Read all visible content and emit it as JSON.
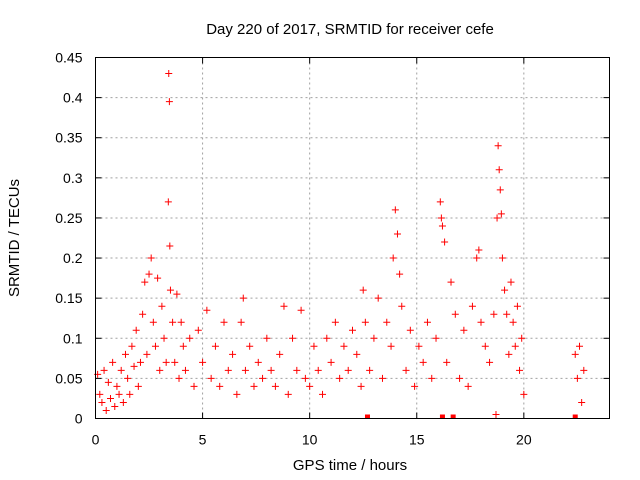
{
  "chart_data": {
    "type": "scatter",
    "title": "Day 220 of 2017, SRMTID for receiver cefe",
    "xlabel": "GPS time / hours",
    "ylabel": "SRMTID / TECUs",
    "xlim": [
      0,
      24
    ],
    "ylim": [
      0,
      0.45
    ],
    "x_ticks": [
      0,
      5,
      10,
      15,
      20
    ],
    "x_tick_labels": [
      "0",
      "5",
      "10",
      "15",
      "20"
    ],
    "y_ticks": [
      0,
      0.05,
      0.1,
      0.15,
      0.2,
      0.25,
      0.3,
      0.35,
      0.4,
      0.45
    ],
    "y_tick_labels": [
      "0",
      "0.05",
      "0.1",
      "0.15",
      "0.2",
      "0.25",
      "0.3",
      "0.35",
      "0.4",
      "0.45"
    ],
    "grid": true,
    "marker": "+",
    "color": "#ff0000",
    "baseline_gaps_x": [
      12.7,
      16.2,
      16.7,
      22.4
    ],
    "series": [
      {
        "name": "SRMTID",
        "points": [
          [
            0.1,
            0.055
          ],
          [
            0.2,
            0.03
          ],
          [
            0.3,
            0.02
          ],
          [
            0.4,
            0.06
          ],
          [
            0.5,
            0.01
          ],
          [
            0.6,
            0.045
          ],
          [
            0.7,
            0.025
          ],
          [
            0.8,
            0.07
          ],
          [
            0.9,
            0.015
          ],
          [
            1.0,
            0.04
          ],
          [
            1.1,
            0.03
          ],
          [
            1.2,
            0.06
          ],
          [
            1.3,
            0.02
          ],
          [
            1.4,
            0.08
          ],
          [
            1.5,
            0.05
          ],
          [
            1.6,
            0.03
          ],
          [
            1.7,
            0.09
          ],
          [
            1.8,
            0.065
          ],
          [
            1.9,
            0.11
          ],
          [
            2.0,
            0.04
          ],
          [
            2.1,
            0.07
          ],
          [
            2.2,
            0.13
          ],
          [
            2.3,
            0.17
          ],
          [
            2.4,
            0.08
          ],
          [
            2.5,
            0.18
          ],
          [
            2.6,
            0.2
          ],
          [
            2.7,
            0.12
          ],
          [
            2.8,
            0.09
          ],
          [
            2.9,
            0.175
          ],
          [
            3.0,
            0.06
          ],
          [
            3.1,
            0.14
          ],
          [
            3.2,
            0.1
          ],
          [
            3.3,
            0.07
          ],
          [
            3.4,
            0.27
          ],
          [
            3.42,
            0.43
          ],
          [
            3.45,
            0.395
          ],
          [
            3.47,
            0.215
          ],
          [
            3.5,
            0.16
          ],
          [
            3.6,
            0.12
          ],
          [
            3.7,
            0.07
          ],
          [
            3.8,
            0.155
          ],
          [
            3.9,
            0.05
          ],
          [
            4.0,
            0.12
          ],
          [
            4.1,
            0.09
          ],
          [
            4.2,
            0.06
          ],
          [
            4.4,
            0.1
          ],
          [
            4.6,
            0.04
          ],
          [
            4.8,
            0.11
          ],
          [
            5.0,
            0.07
          ],
          [
            5.2,
            0.135
          ],
          [
            5.4,
            0.05
          ],
          [
            5.6,
            0.09
          ],
          [
            5.8,
            0.04
          ],
          [
            6.0,
            0.12
          ],
          [
            6.2,
            0.06
          ],
          [
            6.4,
            0.08
          ],
          [
            6.6,
            0.03
          ],
          [
            6.8,
            0.12
          ],
          [
            6.9,
            0.15
          ],
          [
            7.0,
            0.06
          ],
          [
            7.2,
            0.09
          ],
          [
            7.4,
            0.04
          ],
          [
            7.6,
            0.07
          ],
          [
            7.8,
            0.05
          ],
          [
            8.0,
            0.1
          ],
          [
            8.2,
            0.06
          ],
          [
            8.4,
            0.04
          ],
          [
            8.6,
            0.08
          ],
          [
            8.8,
            0.14
          ],
          [
            9.0,
            0.03
          ],
          [
            9.2,
            0.1
          ],
          [
            9.4,
            0.06
          ],
          [
            9.6,
            0.135
          ],
          [
            9.8,
            0.05
          ],
          [
            10.0,
            0.04
          ],
          [
            10.2,
            0.09
          ],
          [
            10.4,
            0.06
          ],
          [
            10.6,
            0.03
          ],
          [
            10.8,
            0.1
          ],
          [
            11.0,
            0.07
          ],
          [
            11.2,
            0.12
          ],
          [
            11.4,
            0.05
          ],
          [
            11.6,
            0.09
          ],
          [
            11.8,
            0.06
          ],
          [
            12.0,
            0.11
          ],
          [
            12.2,
            0.08
          ],
          [
            12.4,
            0.04
          ],
          [
            12.5,
            0.16
          ],
          [
            12.6,
            0.12
          ],
          [
            12.8,
            0.06
          ],
          [
            13.0,
            0.1
          ],
          [
            13.2,
            0.15
          ],
          [
            13.4,
            0.05
          ],
          [
            13.6,
            0.12
          ],
          [
            13.8,
            0.09
          ],
          [
            13.9,
            0.2
          ],
          [
            14.0,
            0.26
          ],
          [
            14.1,
            0.23
          ],
          [
            14.2,
            0.18
          ],
          [
            14.3,
            0.14
          ],
          [
            14.5,
            0.06
          ],
          [
            14.7,
            0.11
          ],
          [
            14.9,
            0.04
          ],
          [
            15.1,
            0.09
          ],
          [
            15.3,
            0.07
          ],
          [
            15.5,
            0.12
          ],
          [
            15.7,
            0.05
          ],
          [
            15.9,
            0.1
          ],
          [
            16.1,
            0.27
          ],
          [
            16.15,
            0.25
          ],
          [
            16.2,
            0.24
          ],
          [
            16.3,
            0.22
          ],
          [
            16.4,
            0.07
          ],
          [
            16.6,
            0.17
          ],
          [
            16.8,
            0.13
          ],
          [
            17.0,
            0.05
          ],
          [
            17.2,
            0.11
          ],
          [
            17.4,
            0.04
          ],
          [
            17.6,
            0.14
          ],
          [
            17.8,
            0.2
          ],
          [
            17.9,
            0.21
          ],
          [
            18.0,
            0.12
          ],
          [
            18.2,
            0.09
          ],
          [
            18.4,
            0.07
          ],
          [
            18.6,
            0.13
          ],
          [
            18.7,
            0.005
          ],
          [
            18.75,
            0.25
          ],
          [
            18.8,
            0.34
          ],
          [
            18.85,
            0.31
          ],
          [
            18.9,
            0.285
          ],
          [
            18.95,
            0.255
          ],
          [
            19.0,
            0.2
          ],
          [
            19.1,
            0.16
          ],
          [
            19.2,
            0.13
          ],
          [
            19.3,
            0.08
          ],
          [
            19.4,
            0.17
          ],
          [
            19.5,
            0.12
          ],
          [
            19.6,
            0.09
          ],
          [
            19.7,
            0.14
          ],
          [
            19.8,
            0.06
          ],
          [
            19.9,
            0.1
          ],
          [
            20.0,
            0.03
          ],
          [
            22.4,
            0.08
          ],
          [
            22.5,
            0.05
          ],
          [
            22.6,
            0.09
          ],
          [
            22.7,
            0.02
          ],
          [
            22.8,
            0.06
          ]
        ]
      }
    ]
  }
}
